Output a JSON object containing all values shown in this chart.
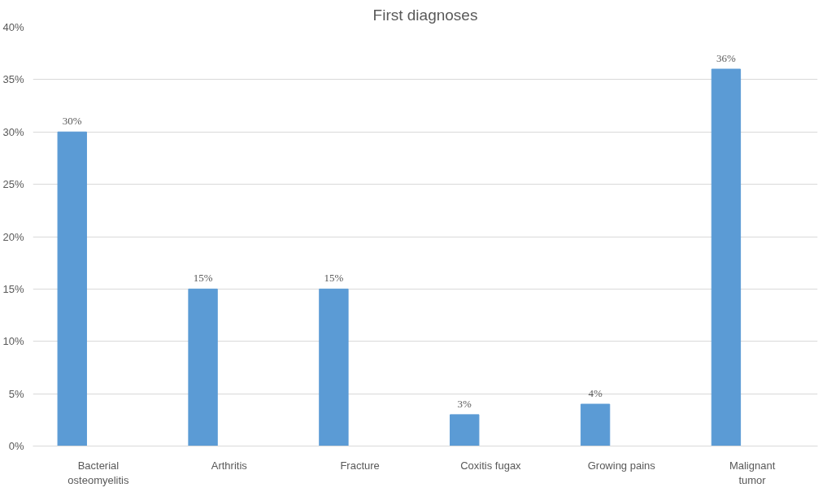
{
  "chart_data": {
    "type": "bar",
    "title": "First diagnoses",
    "categories": [
      "Bacterial osteomyelitis",
      "Arthritis",
      "Fracture",
      "Coxitis fugax",
      "Growing pains",
      "Malignant tumor"
    ],
    "values": [
      30,
      15,
      15,
      3,
      4,
      36
    ],
    "value_labels": [
      "30%",
      "15%",
      "15%",
      "3%",
      "4%",
      "36%"
    ],
    "color": "#5b9bd5",
    "ylim": [
      0,
      40
    ],
    "yticks": [
      {
        "value": 0,
        "label": "0%"
      },
      {
        "value": 5,
        "label": "5%"
      },
      {
        "value": 10,
        "label": "10%"
      },
      {
        "value": 15,
        "label": "15%"
      },
      {
        "value": 20,
        "label": "20%"
      },
      {
        "value": 25,
        "label": "25%"
      },
      {
        "value": 30,
        "label": "30%"
      },
      {
        "value": 35,
        "label": "35%"
      },
      {
        "value": 40,
        "label": "40%"
      }
    ],
    "grid": "y"
  }
}
